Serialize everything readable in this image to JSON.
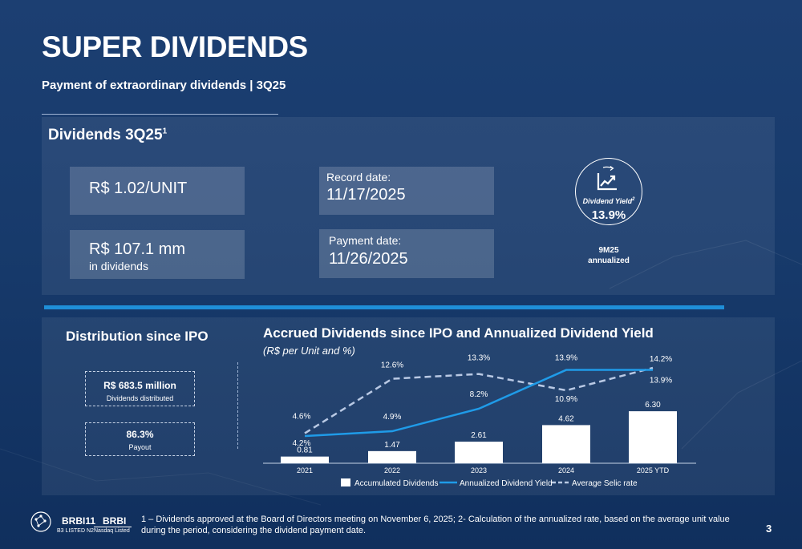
{
  "header": {
    "title": "SUPER DIVIDENDS",
    "subtitle": "Payment of extraordinary dividends | 3Q25"
  },
  "top_panel": {
    "heading": "Dividends 3Q25",
    "heading_sup": "1",
    "per_unit": "R$ 1.02/UNIT",
    "total": "R$ 107.1 mm",
    "total_caption": "in dividends",
    "record_label": "Record date:",
    "record_date": "11/17/2025",
    "payment_label": "Payment date:",
    "payment_date": "11/26/2025",
    "yield_label": "Dividend Yield",
    "yield_sup": "2",
    "yield_value": "13.9%",
    "yield_note_1": "9M25",
    "yield_note_2": "annualized",
    "icon": "chart-growth-icon"
  },
  "bottom_panel": {
    "distribution_heading": "Distribution since IPO",
    "distributed_value": "R$ 683.5 million",
    "distributed_label": "Dividends distributed",
    "payout_value": "86.3%",
    "payout_label": "Payout"
  },
  "chart_data": {
    "type": "bar",
    "title": "Accrued Dividends since IPO and Annualized Dividend Yield",
    "subtitle": "(R$ per Unit and %)",
    "categories": [
      "2021",
      "2022",
      "2023",
      "2024",
      "2025 YTD"
    ],
    "series": [
      {
        "name": "Accumulated Dividends",
        "kind": "bar",
        "values": [
          0.81,
          1.47,
          2.61,
          4.62,
          6.3
        ],
        "labels": [
          "0.81",
          "1.47",
          "2.61",
          "4.62",
          "6.30"
        ],
        "color": "#ffffff"
      },
      {
        "name": "Annualized Dividend Yield",
        "kind": "line",
        "values": [
          4.2,
          4.9,
          8.2,
          13.9,
          13.9
        ],
        "labels": [
          "4.2%",
          "4.9%",
          "8.2%",
          "13.9%",
          "13.9%"
        ],
        "color": "#1f9be8"
      },
      {
        "name": "Average Selic rate",
        "kind": "dashed-line",
        "values": [
          4.6,
          12.6,
          13.3,
          10.9,
          14.2
        ],
        "labels": [
          "4.6%",
          "12.6%",
          "13.3%",
          "10.9%",
          "14.2%"
        ],
        "color": "#b9c9e4"
      }
    ],
    "legend_position": "bottom",
    "grid": false
  },
  "footer": {
    "ticker_1": "BRBI11",
    "ticker_1_sub": "B3 LISTED N2",
    "ticker_2": "BRBI",
    "ticker_2_sub": "Nasdaq Listed",
    "note": "1 – Dividends approved at the Board of Directors meeting on November 6, 2025; 2- Calculation of the annualized rate, based on the average unit value during the period, considering the dividend payment date.",
    "page_number": "3"
  }
}
